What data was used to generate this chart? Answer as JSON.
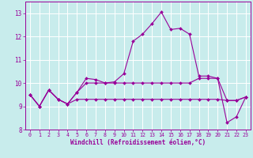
{
  "title": "",
  "xlabel": "Windchill (Refroidissement éolien,°C)",
  "background_color": "#c8ecec",
  "line_color": "#990099",
  "grid_color": "#ffffff",
  "hours": [
    0,
    1,
    2,
    3,
    4,
    5,
    6,
    7,
    8,
    9,
    10,
    11,
    12,
    13,
    14,
    15,
    16,
    17,
    18,
    19,
    20,
    21,
    22,
    23
  ],
  "line1": [
    9.5,
    9.0,
    9.7,
    9.3,
    9.1,
    9.6,
    10.2,
    10.15,
    10.0,
    10.05,
    10.4,
    11.8,
    12.1,
    12.55,
    13.05,
    12.3,
    12.35,
    12.1,
    10.3,
    10.3,
    10.2,
    8.3,
    8.55,
    9.4
  ],
  "line2": [
    9.5,
    9.0,
    9.7,
    9.3,
    9.1,
    9.6,
    10.0,
    10.0,
    10.0,
    10.0,
    10.0,
    10.0,
    10.0,
    10.0,
    10.0,
    10.0,
    10.0,
    10.0,
    10.2,
    10.2,
    10.2,
    9.25,
    9.25,
    9.4
  ],
  "line3": [
    9.5,
    9.0,
    9.7,
    9.3,
    9.1,
    9.3,
    9.3,
    9.3,
    9.3,
    9.3,
    9.3,
    9.3,
    9.3,
    9.3,
    9.3,
    9.3,
    9.3,
    9.3,
    9.3,
    9.3,
    9.3,
    9.25,
    9.25,
    9.4
  ],
  "ylim": [
    8.0,
    13.5
  ],
  "xlim": [
    -0.5,
    23.5
  ],
  "yticks": [
    8,
    9,
    10,
    11,
    12,
    13
  ],
  "xticks": [
    0,
    1,
    2,
    3,
    4,
    5,
    6,
    7,
    8,
    9,
    10,
    11,
    12,
    13,
    14,
    15,
    16,
    17,
    18,
    19,
    20,
    21,
    22,
    23
  ]
}
